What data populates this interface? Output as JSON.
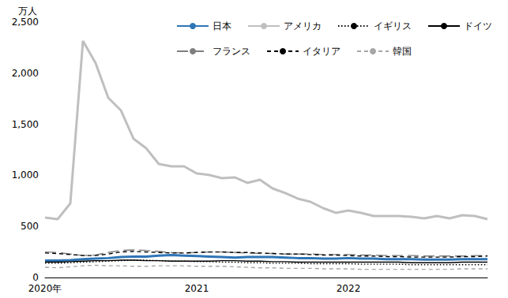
{
  "chart_data": {
    "type": "line",
    "y_label": "万人",
    "categories": [
      "2020年",
      null,
      null,
      null,
      null,
      null,
      null,
      null,
      null,
      null,
      null,
      null,
      "2021",
      null,
      null,
      null,
      null,
      null,
      null,
      null,
      null,
      null,
      null,
      null,
      "2022",
      null,
      null,
      null,
      null,
      null,
      null,
      null,
      null,
      null,
      null,
      null
    ],
    "ylim": [
      0,
      2500
    ],
    "yticks": [
      0,
      500,
      {
        "value": 1000,
        "label": "1,000"
      },
      {
        "value": 1500,
        "label": "1,500"
      },
      {
        "value": 2000,
        "label": "2,000"
      },
      {
        "value": 2500,
        "label": "2,500"
      }
    ],
    "grid": false,
    "legend": "upper right",
    "series": [
      {
        "name": "日本",
        "color": "#2e75b6",
        "line_style": "solid",
        "values": [
          165,
          165,
          170,
          180,
          185,
          190,
          200,
          205,
          205,
          215,
          220,
          215,
          210,
          205,
          200,
          195,
          200,
          200,
          200,
          195,
          190,
          190,
          185,
          185,
          190,
          185,
          185,
          180,
          180,
          180,
          175,
          175,
          175,
          180,
          180,
          180
        ]
      },
      {
        "name": "アメリカ",
        "color": "#bfbfbf",
        "line_style": "solid",
        "values": [
          586,
          571,
          725,
          2315,
          2099,
          1759,
          1636,
          1358,
          1265,
          1111,
          1088,
          1088,
          1019,
          1003,
          972,
          980,
          926,
          957,
          872,
          826,
          772,
          741,
          679,
          633,
          656,
          633,
          602,
          602,
          602,
          594,
          579,
          602,
          579,
          610,
          602,
          571
        ]
      },
      {
        "name": "イギリス",
        "color": "#000000",
        "line_style": "dotted",
        "values": [
          140,
          140,
          145,
          150,
          155,
          160,
          165,
          170,
          170,
          165,
          160,
          160,
          155,
          155,
          150,
          150,
          145,
          145,
          140,
          140,
          140,
          135,
          135,
          135,
          135,
          130,
          130,
          130,
          130,
          125,
          125,
          125,
          125,
          125,
          125,
          125
        ]
      },
      {
        "name": "ドイツ",
        "color": "#000000",
        "line_style": "solid",
        "values": [
          150,
          150,
          155,
          160,
          165,
          165,
          170,
          170,
          165,
          165,
          160,
          160,
          160,
          160,
          165,
          165,
          160,
          160,
          155,
          155,
          150,
          150,
          150,
          150,
          150,
          150,
          150,
          150,
          150,
          145,
          145,
          145,
          145,
          150,
          150,
          150
        ]
      },
      {
        "name": "フランス",
        "color": "#7f7f7f",
        "line_style": "long_dash",
        "values": [
          250,
          245,
          230,
          215,
          220,
          245,
          265,
          270,
          265,
          255,
          245,
          240,
          245,
          250,
          250,
          245,
          240,
          235,
          235,
          230,
          230,
          230,
          225,
          225,
          225,
          220,
          220,
          215,
          215,
          215,
          210,
          210,
          210,
          210,
          215,
          215
        ]
      },
      {
        "name": "イタリア",
        "color": "#000000",
        "line_style": "dashed",
        "values": [
          240,
          235,
          225,
          215,
          215,
          230,
          250,
          255,
          250,
          245,
          240,
          240,
          245,
          250,
          250,
          245,
          245,
          240,
          235,
          230,
          230,
          225,
          220,
          220,
          215,
          210,
          210,
          205,
          205,
          200,
          200,
          200,
          200,
          205,
          205,
          210
        ]
      },
      {
        "name": "韓国",
        "color": "#a6a6a6",
        "line_style": "dashed",
        "values": [
          100,
          95,
          105,
          115,
          120,
          115,
          115,
          110,
          110,
          115,
          115,
          115,
          110,
          110,
          110,
          105,
          100,
          95,
          95,
          90,
          90,
          90,
          85,
          85,
          85,
          80,
          80,
          80,
          80,
          80,
          80,
          80,
          80,
          85,
          85,
          85
        ]
      }
    ]
  }
}
